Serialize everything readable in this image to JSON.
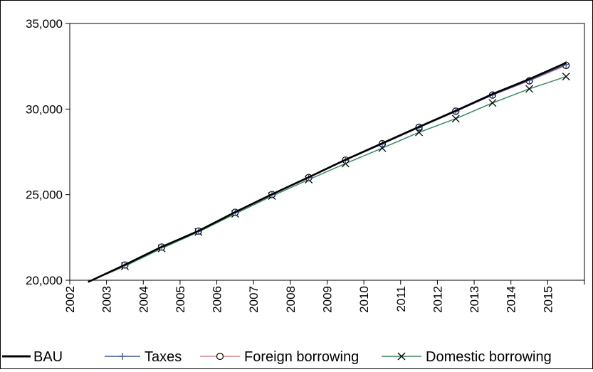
{
  "chart_data": {
    "type": "line",
    "title": "",
    "xlabel": "",
    "ylabel": "",
    "categories": [
      "2002",
      "2003",
      "2004",
      "2005",
      "2006",
      "2007",
      "2008",
      "2009",
      "2010",
      "2011",
      "2012",
      "2013",
      "2014",
      "2015"
    ],
    "ylim": [
      20000,
      35000
    ],
    "yticks": [
      20000,
      25000,
      30000,
      35000
    ],
    "ytick_labels": [
      "20,000",
      "25,000",
      "30,000",
      "35,000"
    ],
    "grid": false,
    "legend_position": "bottom",
    "series": [
      {
        "name": "BAU",
        "color": "#000000",
        "marker": "none",
        "values": [
          19900,
          20900,
          21950,
          22880,
          23980,
          25020,
          26020,
          27040,
          28000,
          28960,
          29900,
          30880,
          31750,
          32700
        ]
      },
      {
        "name": "Taxes",
        "color": "#3355aa",
        "marker": "plus",
        "values": [
          19900,
          20880,
          21930,
          22860,
          23960,
          25000,
          25990,
          27010,
          27960,
          28920,
          29860,
          30820,
          31680,
          32600
        ]
      },
      {
        "name": "Foreign borrowing",
        "color": "#e08080",
        "marker": "circle",
        "values": [
          19900,
          20890,
          21940,
          22870,
          23970,
          25010,
          26000,
          27020,
          27980,
          28940,
          29880,
          30820,
          31650,
          32550
        ]
      },
      {
        "name": "Domestic borrowing",
        "color": "#2e8b57",
        "marker": "x",
        "values": [
          19900,
          20820,
          21860,
          22820,
          23880,
          24920,
          25880,
          26820,
          27720,
          28640,
          29440,
          30360,
          31180,
          31900
        ]
      }
    ]
  }
}
